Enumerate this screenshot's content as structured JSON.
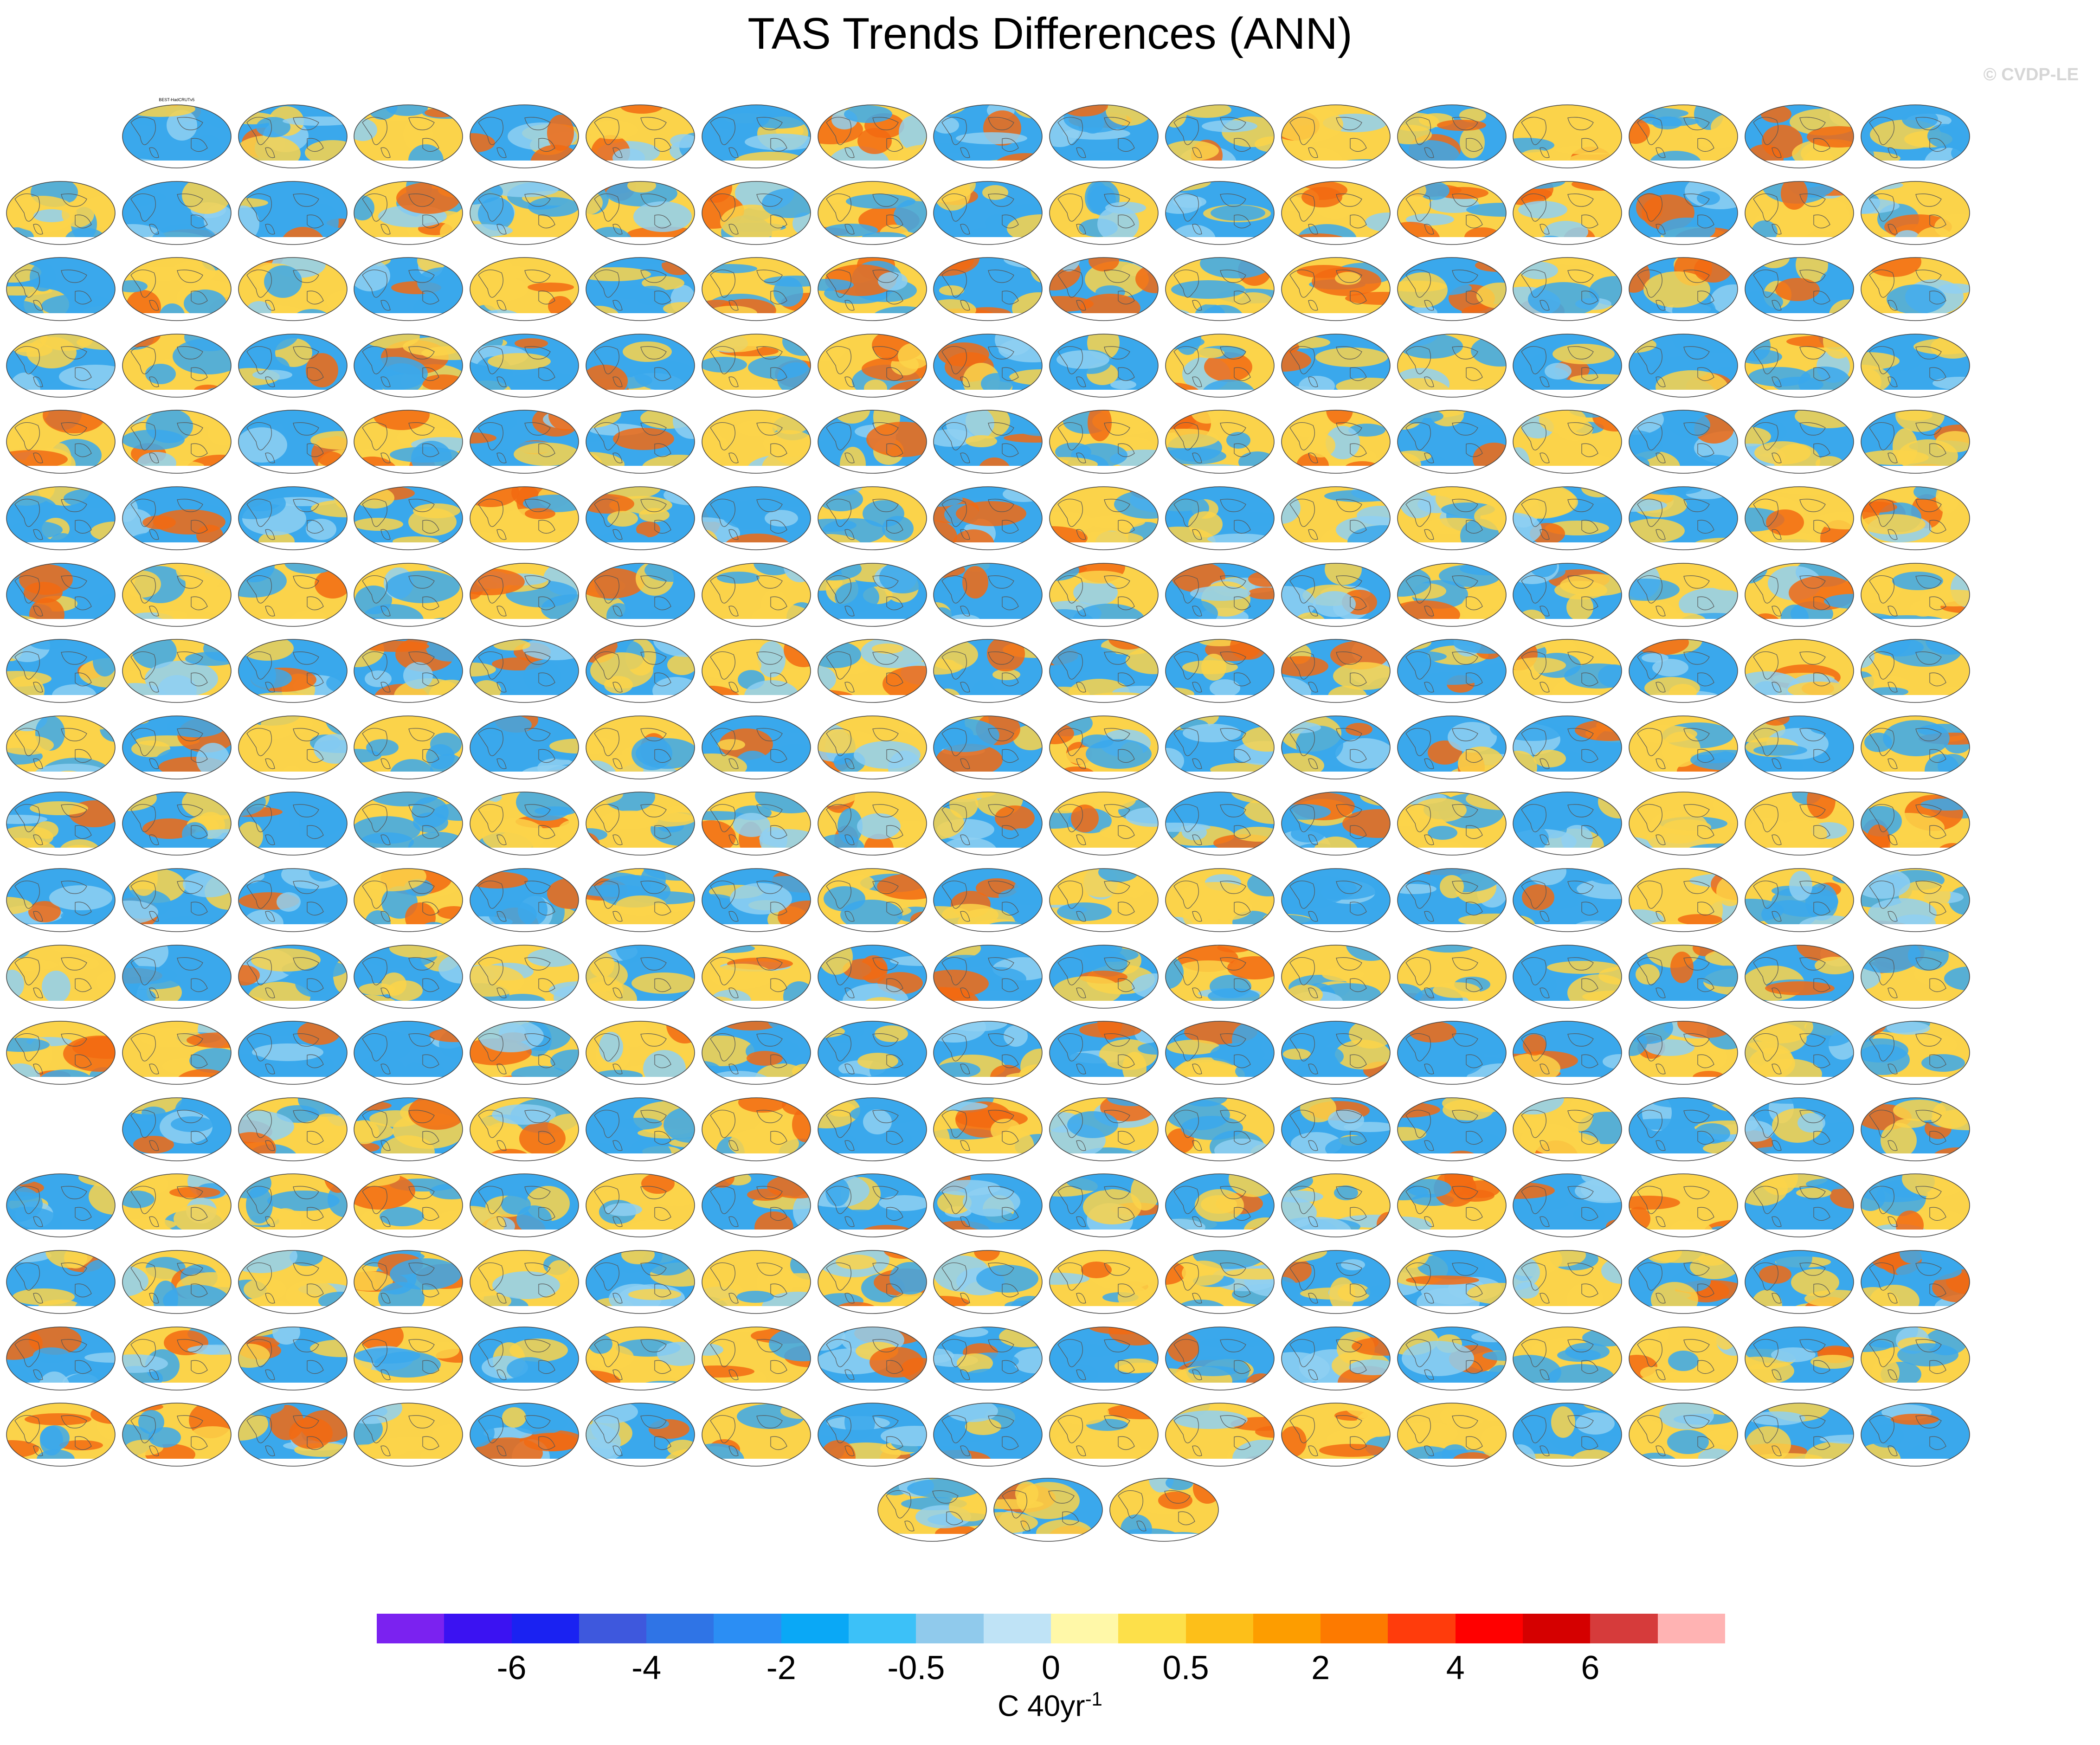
{
  "title": "TAS Trends Differences (ANN)",
  "credit": "© CVDP-LE",
  "colorbar": {
    "colors": [
      "#7b22f0",
      "#3b12f2",
      "#1a22f2",
      "#3e58dd",
      "#2f74e6",
      "#2b8ef4",
      "#0aa8f6",
      "#3cc1f8",
      "#90caec",
      "#bfe3f6",
      "#fff8a8",
      "#fde04a",
      "#fdbf19",
      "#fd9d00",
      "#fd7a00",
      "#ff3c0c",
      "#ff0000",
      "#d50000",
      "#d63b3b",
      "#ffb3b3"
    ],
    "tick_labels": [
      "-6",
      "-4",
      "-2",
      "-0.5",
      "0",
      "0.5",
      "2",
      "4",
      "6"
    ],
    "units_main": "C 40yr",
    "units_sup": "-1"
  },
  "panels": {
    "count": 307,
    "first_label": "BEST-HadCRUTv5"
  },
  "map_colors": {
    "ocean_warm": "#fbd34a",
    "ocean_cool": "#3aa8ec",
    "land": "#8fd0f2",
    "hot": "#f26a12",
    "ice": "#ffffff",
    "coast": "#555555"
  }
}
